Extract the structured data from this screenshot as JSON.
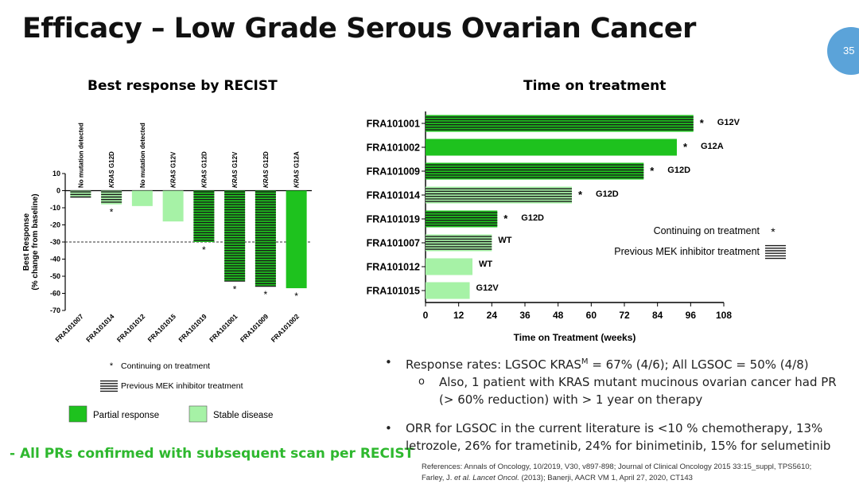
{
  "title": "Efficacy – Low Grade Serous Ovarian Cancer",
  "page_number": "35",
  "colors": {
    "partial_response": "#1ec21e",
    "stable_disease": "#a6f2a6",
    "stripe": "#1a1a1a",
    "accent_footer": "#2eb82e",
    "page_badge": "#5ba3d9"
  },
  "chart_data": [
    {
      "type": "bar",
      "title": "Best response by RECIST",
      "ylabel": "Best Response",
      "ylabel2": "(% change from baseline)",
      "ylim": [
        -70,
        10
      ],
      "yticks": [
        "10",
        "0",
        "-10",
        "-20",
        "-30",
        "-40",
        "-50",
        "-60",
        "-70"
      ],
      "threshold": -30,
      "categories": [
        "FRA101007",
        "FRA101014",
        "FRA101012",
        "FRA101015",
        "FRA101019",
        "FRA101001",
        "FRA101009",
        "FRA101002"
      ],
      "values": [
        -4,
        -8,
        -9,
        -18,
        -30,
        -53,
        -56,
        -57
      ],
      "response": [
        "stable",
        "stable",
        "stable",
        "stable",
        "partial",
        "partial",
        "partial",
        "partial"
      ],
      "prior_mek": [
        true,
        true,
        false,
        false,
        true,
        true,
        true,
        false
      ],
      "continuing": [
        false,
        true,
        false,
        false,
        true,
        true,
        true,
        true
      ],
      "mutation_labels": [
        {
          "prefix": "",
          "text": "No mutation detected"
        },
        {
          "prefix": "KRAS",
          "text": " G12D"
        },
        {
          "prefix": "",
          "text": "No mutation detected"
        },
        {
          "prefix": "KRAS",
          "text": " G12V"
        },
        {
          "prefix": "KRAS",
          "text": " G12D"
        },
        {
          "prefix": "KRAS",
          "text": " G12V"
        },
        {
          "prefix": "KRAS",
          "text": " G12D"
        },
        {
          "prefix": "KRAS",
          "text": " G12A"
        }
      ],
      "legend": {
        "continuing_symbol": "*",
        "continuing": "Continuing on treatment",
        "prior_mek": "Previous MEK inhibitor treatment",
        "partial": "Partial response",
        "stable": "Stable disease"
      }
    },
    {
      "type": "bar",
      "orientation": "horizontal",
      "title": "Time on treatment",
      "xlabel": "Time on Treatment (weeks)",
      "xlim": [
        0,
        108
      ],
      "xticks": [
        "0",
        "12",
        "24",
        "36",
        "48",
        "60",
        "72",
        "84",
        "96",
        "108"
      ],
      "categories": [
        "FRA101001",
        "FRA101002",
        "FRA101009",
        "FRA101014",
        "FRA101019",
        "FRA101007",
        "FRA101012",
        "FRA101015"
      ],
      "values": [
        97,
        91,
        79,
        53,
        26,
        24,
        17,
        16
      ],
      "response": [
        "partial",
        "partial",
        "partial",
        "stable",
        "partial",
        "stable",
        "stable",
        "stable"
      ],
      "prior_mek": [
        true,
        false,
        true,
        true,
        true,
        true,
        false,
        false
      ],
      "continuing": [
        true,
        true,
        true,
        true,
        true,
        false,
        false,
        false
      ],
      "mutations": [
        "G12V",
        "G12A",
        "G12D",
        "G12D",
        "G12D",
        "WT",
        "WT",
        "G12V"
      ],
      "legend": {
        "continuing": "Continuing on treatment",
        "continuing_symbol": "*",
        "prior_mek": "Previous MEK inhibitor treatment"
      }
    }
  ],
  "footer_note": "- All PRs confirmed with subsequent scan per RECIST",
  "bullets": {
    "b1_pre": "Response rates:  LGSOC KRAS",
    "b1_sup": "M",
    "b1_post": " = 67% (4/6); All LGSOC = 50% (4/8)",
    "b1_sub": "Also, 1 patient with KRAS mutant mucinous ovarian cancer had PR  (> 60% reduction) with > 1 year on therapy",
    "b2": "ORR for LGSOC in the current literature is <10 % chemotherapy, 13% letrozole, 26% for trametinib, 24% for binimetinib, 15% for selumetinib",
    "bullet_char": "•",
    "sub_char": "o"
  },
  "references": {
    "line1": "References: Annals of Oncology, 10/2019, V30, v897-898; Journal of Clinical Oncology 2015 33:15_suppl, TPS5610;",
    "line2_pre": "Farley, J. ",
    "line2_ital": "et al. Lancet Oncol.",
    "line2_post": " (2013); Banerji, AACR VM 1, April 27, 2020, CT143"
  }
}
